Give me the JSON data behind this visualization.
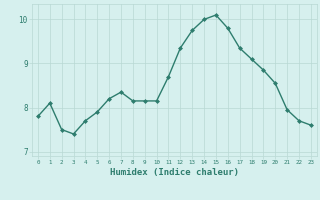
{
  "x": [
    0,
    1,
    2,
    3,
    4,
    5,
    6,
    7,
    8,
    9,
    10,
    11,
    12,
    13,
    14,
    15,
    16,
    17,
    18,
    19,
    20,
    21,
    22,
    23
  ],
  "y": [
    7.8,
    8.1,
    7.5,
    7.4,
    7.7,
    7.9,
    8.2,
    8.35,
    8.15,
    8.15,
    8.15,
    8.7,
    9.35,
    9.75,
    10.0,
    10.1,
    9.8,
    9.35,
    9.1,
    8.85,
    8.55,
    7.95,
    7.7,
    7.6
  ],
  "line_color": "#2e7d6e",
  "marker": "D",
  "marker_size": 2,
  "bg_color": "#d6f0ee",
  "grid_color": "#b8d8d4",
  "tick_label_color": "#2e7d6e",
  "xlabel": "Humidex (Indice chaleur)",
  "xlabel_color": "#2e7d6e",
  "xlabel_fontsize": 6.5,
  "ylim": [
    6.9,
    10.35
  ],
  "xlim": [
    -0.5,
    23.5
  ],
  "yticks": [
    7,
    8,
    9,
    10
  ],
  "xticks": [
    0,
    1,
    2,
    3,
    4,
    5,
    6,
    7,
    8,
    9,
    10,
    11,
    12,
    13,
    14,
    15,
    16,
    17,
    18,
    19,
    20,
    21,
    22,
    23
  ]
}
